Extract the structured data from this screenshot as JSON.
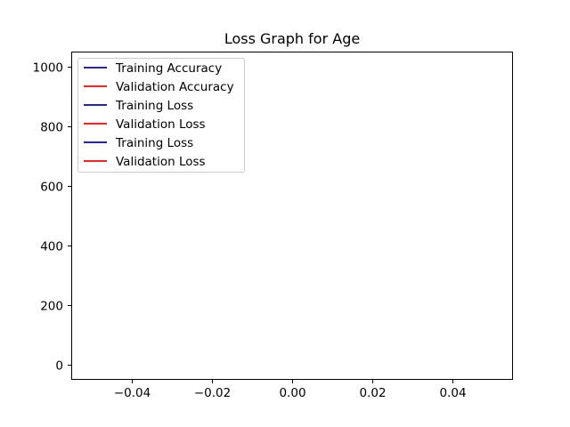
{
  "chart_data": {
    "type": "line",
    "title": "Loss Graph for Age",
    "xlabel": "",
    "ylabel": "",
    "xlim": [
      -0.055,
      0.055
    ],
    "ylim": [
      -50,
      1050
    ],
    "xticks": [
      -0.04,
      -0.02,
      0.0,
      0.02,
      0.04
    ],
    "xtick_labels": [
      "−0.04",
      "−0.02",
      "0.00",
      "0.02",
      "0.04"
    ],
    "yticks": [
      0,
      200,
      400,
      600,
      800,
      1000
    ],
    "ytick_labels": [
      "0",
      "200",
      "400",
      "600",
      "800",
      "1000"
    ],
    "grid": false,
    "legend_position": "top-left",
    "series": [
      {
        "name": "Training Accuracy",
        "color": "#0000cc",
        "x": [],
        "y": []
      },
      {
        "name": "Validation Accuracy",
        "color": "#ff0000",
        "x": [],
        "y": []
      },
      {
        "name": "Training Loss",
        "color": "#0000cc",
        "x": [],
        "y": []
      },
      {
        "name": "Validation Loss",
        "color": "#ff0000",
        "x": [],
        "y": []
      },
      {
        "name": "Training Loss",
        "color": "#0000cc",
        "x": [],
        "y": []
      },
      {
        "name": "Validation Loss",
        "color": "#ff0000",
        "x": [],
        "y": []
      }
    ]
  }
}
